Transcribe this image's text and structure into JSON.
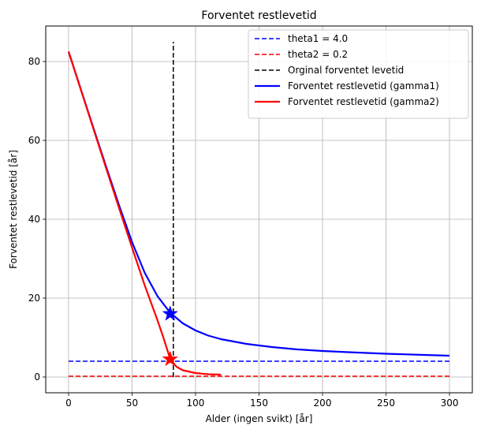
{
  "chart_data": {
    "type": "line",
    "title": "Forventet restlevetid",
    "xlabel": "Alder (ingen svikt) [år]",
    "ylabel": "Forventet restlevetid [år]",
    "xlim": [
      -18,
      318
    ],
    "ylim": [
      -4,
      89
    ],
    "xticks": [
      0,
      50,
      100,
      150,
      200,
      250,
      300
    ],
    "yticks": [
      0,
      20,
      40,
      60,
      80
    ],
    "grid": true,
    "legend_position": "upper-right",
    "series": [
      {
        "name": "theta1 = 4.0",
        "style": "dashed",
        "color": "#0000ff",
        "x": [
          0,
          300
        ],
        "y": [
          4.0,
          4.0
        ]
      },
      {
        "name": "theta2 = 0.2",
        "style": "dashed",
        "color": "#ff0000",
        "x": [
          0,
          300
        ],
        "y": [
          0.2,
          0.2
        ]
      },
      {
        "name": "Orginal forventet levetid",
        "style": "dashed",
        "color": "#000000",
        "x": [
          82.5,
          82.5
        ],
        "y": [
          0,
          85
        ]
      },
      {
        "name": "Forventet restlevetid (gamma1)",
        "style": "solid",
        "color": "#0000ff",
        "x": [
          0,
          10,
          20,
          30,
          40,
          50,
          60,
          70,
          80,
          90,
          100,
          110,
          120,
          140,
          160,
          180,
          200,
          220,
          250,
          280,
          300
        ],
        "y": [
          82.5,
          72.6,
          62.7,
          52.9,
          43.3,
          34.2,
          26.4,
          20.5,
          16.3,
          13.6,
          11.8,
          10.5,
          9.6,
          8.4,
          7.6,
          7.0,
          6.6,
          6.3,
          5.9,
          5.6,
          5.4
        ]
      },
      {
        "name": "Forventet restlevetid (gamma2)",
        "style": "solid",
        "color": "#ff0000",
        "x": [
          0,
          10,
          20,
          30,
          40,
          50,
          60,
          70,
          75,
          80,
          85,
          90,
          100,
          110,
          120
        ],
        "y": [
          82.5,
          72.5,
          62.5,
          52.5,
          42.6,
          32.8,
          23.2,
          14.4,
          9.7,
          4.6,
          2.6,
          1.7,
          1.0,
          0.7,
          0.6
        ]
      }
    ],
    "markers": [
      {
        "shape": "star",
        "color": "#0000ff",
        "x": 80,
        "y": 16
      },
      {
        "shape": "star",
        "color": "#ff0000",
        "x": 80,
        "y": 4.5
      }
    ]
  }
}
